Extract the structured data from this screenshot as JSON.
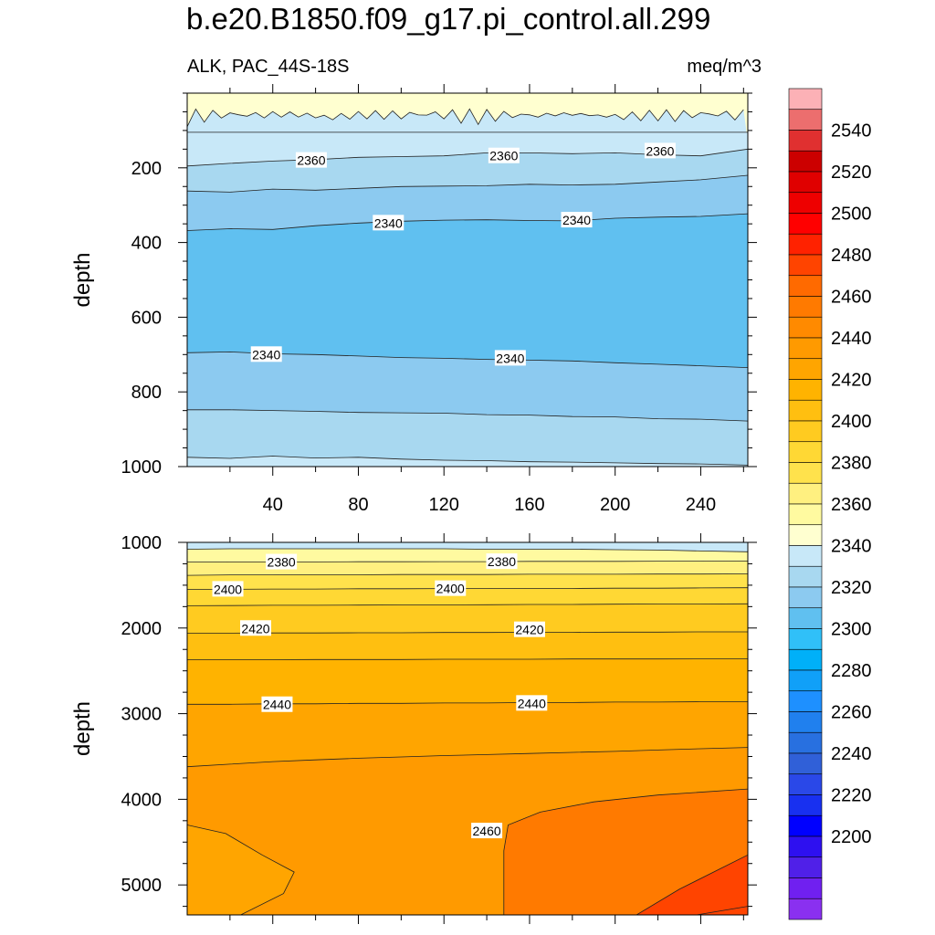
{
  "title": "b.e20.B1850.f09_g17.pi_control.all.299",
  "subtitle_left": "ALK, PAC_44S-18S",
  "subtitle_right": "meq/m^3",
  "chart_data": [
    {
      "type": "heatmap",
      "panel": "upper",
      "ylabel": "depth",
      "xlabel": "",
      "xlim": [
        0,
        262
      ],
      "ylim": [
        1000,
        0
      ],
      "xticks": [
        40,
        80,
        120,
        160,
        200,
        240
      ],
      "yticks": [
        200,
        400,
        600,
        800,
        1000
      ],
      "x": [
        0,
        20,
        40,
        60,
        80,
        100,
        120,
        140,
        160,
        180,
        200,
        220,
        240,
        262
      ],
      "contours": [
        {
          "level": 2370,
          "depth": [
            105,
            105,
            105,
            105,
            105,
            105,
            105,
            105,
            105,
            105,
            105,
            105,
            105,
            105
          ]
        },
        {
          "level": 2360,
          "depth": [
            195,
            188,
            182,
            178,
            172,
            170,
            168,
            160,
            160,
            162,
            160,
            165,
            168,
            150
          ]
        },
        {
          "level": 2350,
          "depth": [
            262,
            265,
            257,
            260,
            255,
            250,
            249,
            248,
            244,
            246,
            244,
            238,
            232,
            220
          ]
        },
        {
          "level": 2340,
          "depth": [
            368,
            363,
            365,
            355,
            348,
            343,
            340,
            339,
            341,
            342,
            335,
            332,
            330,
            323
          ]
        },
        {
          "level": 2340,
          "depth": [
            695,
            693,
            698,
            700,
            704,
            708,
            710,
            713,
            715,
            717,
            722,
            726,
            730,
            735
          ]
        },
        {
          "level": 2350,
          "depth": [
            848,
            848,
            850,
            852,
            855,
            856,
            857,
            861,
            862,
            866,
            867,
            872,
            873,
            878
          ]
        },
        {
          "level": 2360,
          "depth": [
            975,
            978,
            972,
            977,
            975,
            980,
            983,
            984,
            987,
            988,
            990,
            992,
            993,
            996
          ]
        }
      ],
      "contour_labels": [
        {
          "text": "2360",
          "x": 58,
          "depth": 180
        },
        {
          "text": "2360",
          "x": 148,
          "depth": 168
        },
        {
          "text": "2360",
          "x": 221,
          "depth": 155
        },
        {
          "text": "2340",
          "x": 94,
          "depth": 348
        },
        {
          "text": "2340",
          "x": 182,
          "depth": 340
        },
        {
          "text": "2340",
          "x": 37,
          "depth": 700
        },
        {
          "text": "2340",
          "x": 151,
          "depth": 710
        }
      ]
    },
    {
      "type": "heatmap",
      "panel": "lower",
      "ylabel": "depth",
      "xlabel": "",
      "xlim": [
        0,
        262
      ],
      "ylim": [
        5350,
        1000
      ],
      "yticks": [
        1000,
        2000,
        3000,
        4000,
        5000
      ],
      "x": [
        0,
        20,
        40,
        60,
        80,
        100,
        120,
        140,
        160,
        180,
        200,
        220,
        240,
        262
      ],
      "contours": [
        {
          "level": 2370,
          "depth": [
            1080,
            1075,
            1075,
            1075,
            1075,
            1075,
            1075,
            1080,
            1080,
            1080,
            1085,
            1090,
            1100,
            1110
          ]
        },
        {
          "level": 2380,
          "depth": [
            1230,
            1228,
            1228,
            1228,
            1226,
            1226,
            1225,
            1225,
            1222,
            1222,
            1222,
            1220,
            1220,
            1218
          ]
        },
        {
          "level": 2390,
          "depth": [
            1385,
            1380,
            1380,
            1378,
            1378,
            1375,
            1375,
            1375,
            1372,
            1372,
            1372,
            1370,
            1370,
            1368
          ]
        },
        {
          "level": 2400,
          "depth": [
            1550,
            1548,
            1545,
            1545,
            1542,
            1542,
            1540,
            1540,
            1538,
            1538,
            1535,
            1535,
            1532,
            1530
          ]
        },
        {
          "level": 2410,
          "depth": [
            1740,
            1738,
            1735,
            1735,
            1732,
            1730,
            1730,
            1728,
            1725,
            1725,
            1722,
            1720,
            1720,
            1718
          ]
        },
        {
          "level": 2420,
          "depth": [
            2060,
            2060,
            2058,
            2058,
            2055,
            2055,
            2052,
            2052,
            2050,
            2050,
            2048,
            2048,
            2045,
            2045
          ]
        },
        {
          "level": 2430,
          "depth": [
            2370,
            2370,
            2370,
            2368,
            2368,
            2368,
            2365,
            2365,
            2365,
            2362,
            2362,
            2362,
            2360,
            2360
          ]
        },
        {
          "level": 2440,
          "depth": [
            2890,
            2890,
            2885,
            2885,
            2880,
            2880,
            2875,
            2875,
            2870,
            2870,
            2865,
            2865,
            2860,
            2860
          ]
        },
        {
          "level": 2450,
          "depth": [
            3620,
            3590,
            3560,
            3540,
            3520,
            3505,
            3490,
            3478,
            3465,
            3452,
            3440,
            3425,
            3410,
            3395
          ]
        }
      ],
      "contour_labels": [
        {
          "text": "2380",
          "x": 44,
          "depth": 1230
        },
        {
          "text": "2380",
          "x": 147,
          "depth": 1225
        },
        {
          "text": "2400",
          "x": 19,
          "depth": 1548
        },
        {
          "text": "2400",
          "x": 123,
          "depth": 1540
        },
        {
          "text": "2420",
          "x": 32,
          "depth": 2005
        },
        {
          "text": "2420",
          "x": 160,
          "depth": 2020
        },
        {
          "text": "2440",
          "x": 42,
          "depth": 2895
        },
        {
          "text": "2440",
          "x": 161,
          "depth": 2880
        },
        {
          "text": "2460",
          "x": 140,
          "depth": 4370
        }
      ]
    }
  ],
  "colorbar": {
    "labels": [
      "2540",
      "2520",
      "2500",
      "2480",
      "2460",
      "2440",
      "2420",
      "2400",
      "2380",
      "2360",
      "2340",
      "2320",
      "2300",
      "2280",
      "2260",
      "2240",
      "2220",
      "2200"
    ],
    "colors": [
      "#fcb1b6",
      "#ec6e6e",
      "#e03030",
      "#cc0000",
      "#e00000",
      "#ee0000",
      "#ff0000",
      "#ff2200",
      "#ff4400",
      "#ff6a00",
      "#ff7a00",
      "#ff8a00",
      "#ff9a00",
      "#ffa500",
      "#ffb300",
      "#ffbf10",
      "#ffcb20",
      "#ffd834",
      "#ffe24c",
      "#fff080",
      "#fffaa0",
      "#ffffd0",
      "#c8e8f8",
      "#a8d8f0",
      "#8ccaf0",
      "#60c0f0",
      "#30c0f8",
      "#00b0f8",
      "#10a0f8",
      "#1e90ff",
      "#2080ee",
      "#2870e0",
      "#3060d8",
      "#2a48e8",
      "#1830f0",
      "#0000ff",
      "#2e10f0",
      "#5020e8",
      "#7020f0",
      "#8a30f0"
    ]
  }
}
